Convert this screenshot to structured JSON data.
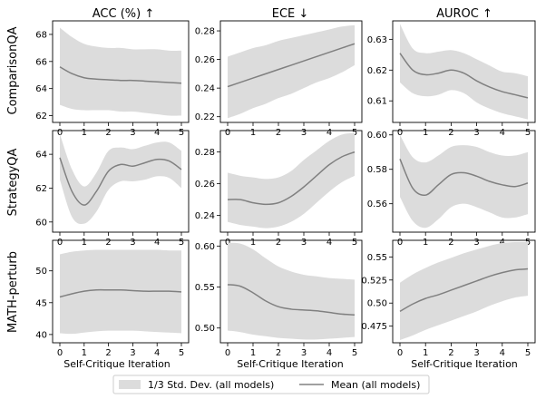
{
  "figure": {
    "column_titles": [
      "ACC (%) ↑",
      "ECE ↓",
      "AUROC ↑"
    ],
    "row_labels": [
      "ComparisonQA",
      "StrategyQA",
      "MATH-perturb"
    ],
    "xlabel": "Self-Critique Iteration",
    "x_ticks": [
      0,
      1,
      2,
      3,
      4,
      5
    ],
    "legend": {
      "band_label": "1/3 Std. Dev. (all models)",
      "line_label": "Mean (all models)"
    },
    "colors": {
      "band": "#dcdcdc",
      "line": "#808080"
    }
  },
  "chart_data": [
    {
      "type": "line",
      "row": "ComparisonQA",
      "column": "ACC (%) ↑",
      "ylim": [
        61.5,
        69
      ],
      "yticks": [
        62,
        64,
        66,
        68
      ],
      "x": [
        0,
        0.5,
        1,
        1.5,
        2,
        2.5,
        3,
        3.5,
        4,
        4.5,
        5
      ],
      "series": [
        {
          "name": "Mean (all models)",
          "values": [
            65.6,
            65.1,
            64.8,
            64.7,
            64.65,
            64.6,
            64.6,
            64.55,
            64.5,
            64.45,
            64.4
          ]
        }
      ],
      "band": {
        "lower": [
          62.8,
          62.5,
          62.4,
          62.4,
          62.4,
          62.3,
          62.3,
          62.2,
          62.1,
          62.0,
          62.0
        ],
        "upper": [
          68.5,
          67.8,
          67.3,
          67.1,
          67.0,
          67.0,
          66.9,
          66.9,
          66.9,
          66.8,
          66.8
        ]
      }
    },
    {
      "type": "line",
      "row": "ComparisonQA",
      "column": "ECE ↓",
      "ylim": [
        0.216,
        0.287
      ],
      "yticks": [
        0.22,
        0.24,
        0.26,
        0.28
      ],
      "x": [
        0,
        0.5,
        1,
        1.5,
        2,
        2.5,
        3,
        3.5,
        4,
        4.5,
        5
      ],
      "series": [
        {
          "name": "Mean (all models)",
          "values": [
            0.241,
            0.244,
            0.247,
            0.25,
            0.253,
            0.256,
            0.259,
            0.262,
            0.265,
            0.268,
            0.271
          ]
        }
      ],
      "band": {
        "lower": [
          0.219,
          0.222,
          0.226,
          0.229,
          0.233,
          0.236,
          0.24,
          0.244,
          0.247,
          0.251,
          0.256
        ],
        "upper": [
          0.262,
          0.265,
          0.268,
          0.27,
          0.273,
          0.275,
          0.277,
          0.279,
          0.281,
          0.283,
          0.284
        ]
      }
    },
    {
      "type": "line",
      "row": "ComparisonQA",
      "column": "AUROC ↑",
      "ylim": [
        0.603,
        0.636
      ],
      "yticks": [
        0.61,
        0.62,
        0.63
      ],
      "x": [
        0,
        0.5,
        1,
        1.5,
        2,
        2.5,
        3,
        3.5,
        4,
        4.5,
        5
      ],
      "series": [
        {
          "name": "Mean (all models)",
          "values": [
            0.6255,
            0.62,
            0.6185,
            0.619,
            0.62,
            0.619,
            0.6165,
            0.6145,
            0.613,
            0.612,
            0.611
          ]
        }
      ],
      "band": {
        "lower": [
          0.616,
          0.6125,
          0.6115,
          0.612,
          0.6135,
          0.6125,
          0.6095,
          0.6075,
          0.606,
          0.605,
          0.604
        ],
        "upper": [
          0.635,
          0.627,
          0.6255,
          0.626,
          0.6265,
          0.6255,
          0.6235,
          0.6215,
          0.6195,
          0.619,
          0.618
        ]
      }
    },
    {
      "type": "line",
      "row": "StrategyQA",
      "column": "ACC (%) ↑",
      "ylim": [
        59.4,
        65.4
      ],
      "yticks": [
        60,
        62,
        64
      ],
      "x": [
        0,
        0.5,
        1,
        1.5,
        2,
        2.5,
        3,
        3.5,
        4,
        4.5,
        5
      ],
      "series": [
        {
          "name": "Mean (all models)",
          "values": [
            63.8,
            61.8,
            61.0,
            61.8,
            63.0,
            63.4,
            63.3,
            63.5,
            63.7,
            63.6,
            63.1
          ]
        }
      ],
      "band": {
        "lower": [
          62.5,
          60.3,
          59.9,
          60.6,
          61.9,
          62.4,
          62.4,
          62.5,
          62.7,
          62.6,
          62.0
        ],
        "upper": [
          65.2,
          63.1,
          62.1,
          62.9,
          64.2,
          64.4,
          64.3,
          64.5,
          64.7,
          64.7,
          64.2
        ]
      }
    },
    {
      "type": "line",
      "row": "StrategyQA",
      "column": "ECE ↓",
      "ylim": [
        0.2295,
        0.2935
      ],
      "yticks": [
        0.24,
        0.26,
        0.28
      ],
      "x": [
        0,
        0.5,
        1,
        1.5,
        2,
        2.5,
        3,
        3.5,
        4,
        4.5,
        5
      ],
      "series": [
        {
          "name": "Mean (all models)",
          "values": [
            0.25,
            0.25,
            0.248,
            0.247,
            0.248,
            0.252,
            0.258,
            0.265,
            0.272,
            0.277,
            0.28
          ]
        }
      ],
      "band": {
        "lower": [
          0.236,
          0.234,
          0.233,
          0.232,
          0.233,
          0.236,
          0.241,
          0.248,
          0.255,
          0.261,
          0.265
        ],
        "upper": [
          0.267,
          0.265,
          0.264,
          0.263,
          0.264,
          0.268,
          0.275,
          0.281,
          0.287,
          0.291,
          0.292
        ]
      }
    },
    {
      "type": "line",
      "row": "StrategyQA",
      "column": "AUROC ↑",
      "ylim": [
        0.5435,
        0.6025
      ],
      "yticks": [
        0.56,
        0.58,
        0.6
      ],
      "x": [
        0,
        0.5,
        1,
        1.5,
        2,
        2.5,
        3,
        3.5,
        4,
        4.5,
        5
      ],
      "series": [
        {
          "name": "Mean (all models)",
          "values": [
            0.586,
            0.569,
            0.565,
            0.571,
            0.577,
            0.578,
            0.576,
            0.573,
            0.571,
            0.57,
            0.572
          ]
        }
      ],
      "band": {
        "lower": [
          0.564,
          0.55,
          0.546,
          0.551,
          0.558,
          0.56,
          0.558,
          0.555,
          0.552,
          0.552,
          0.554
        ],
        "upper": [
          0.6,
          0.587,
          0.584,
          0.588,
          0.593,
          0.594,
          0.593,
          0.59,
          0.588,
          0.588,
          0.59
        ]
      }
    },
    {
      "type": "line",
      "row": "MATH-perturb",
      "column": "ACC (%) ↑",
      "ylim": [
        38.7,
        54.8
      ],
      "yticks": [
        40,
        45,
        50
      ],
      "x": [
        0,
        0.5,
        1,
        1.5,
        2,
        2.5,
        3,
        3.5,
        4,
        4.5,
        5
      ],
      "series": [
        {
          "name": "Mean (all models)",
          "values": [
            45.9,
            46.4,
            46.8,
            47.0,
            47.0,
            47.0,
            46.9,
            46.8,
            46.8,
            46.8,
            46.7
          ]
        }
      ],
      "band": {
        "lower": [
          40.2,
          40.1,
          40.3,
          40.5,
          40.6,
          40.6,
          40.6,
          40.5,
          40.4,
          40.3,
          40.2
        ],
        "upper": [
          52.6,
          53.0,
          53.2,
          53.3,
          53.3,
          53.3,
          53.3,
          53.3,
          53.3,
          53.2,
          53.2
        ]
      }
    },
    {
      "type": "line",
      "row": "MATH-perturb",
      "column": "ECE ↓",
      "ylim": [
        0.482,
        0.607
      ],
      "yticks": [
        0.5,
        0.55,
        0.6
      ],
      "x": [
        0,
        0.5,
        1,
        1.5,
        2,
        2.5,
        3,
        3.5,
        4,
        4.5,
        5
      ],
      "series": [
        {
          "name": "Mean (all models)",
          "values": [
            0.553,
            0.551,
            0.543,
            0.533,
            0.526,
            0.523,
            0.522,
            0.521,
            0.519,
            0.517,
            0.516
          ]
        }
      ],
      "band": {
        "lower": [
          0.497,
          0.495,
          0.492,
          0.49,
          0.488,
          0.487,
          0.486,
          0.486,
          0.487,
          0.488,
          0.489
        ],
        "upper": [
          0.604,
          0.603,
          0.596,
          0.585,
          0.575,
          0.569,
          0.565,
          0.563,
          0.561,
          0.56,
          0.559
        ]
      }
    },
    {
      "type": "line",
      "row": "MATH-perturb",
      "column": "AUROC ↑",
      "ylim": [
        0.457,
        0.568
      ],
      "yticks": [
        0.475,
        0.5,
        0.525,
        0.55
      ],
      "x": [
        0,
        0.5,
        1,
        1.5,
        2,
        2.5,
        3,
        3.5,
        4,
        4.5,
        5
      ],
      "series": [
        {
          "name": "Mean (all models)",
          "values": [
            0.491,
            0.499,
            0.505,
            0.509,
            0.514,
            0.519,
            0.524,
            0.529,
            0.533,
            0.536,
            0.537
          ]
        }
      ],
      "band": {
        "lower": [
          0.46,
          0.465,
          0.471,
          0.476,
          0.481,
          0.486,
          0.491,
          0.497,
          0.502,
          0.506,
          0.508
        ],
        "upper": [
          0.522,
          0.531,
          0.538,
          0.544,
          0.549,
          0.554,
          0.558,
          0.562,
          0.565,
          0.566,
          0.566
        ]
      }
    }
  ]
}
